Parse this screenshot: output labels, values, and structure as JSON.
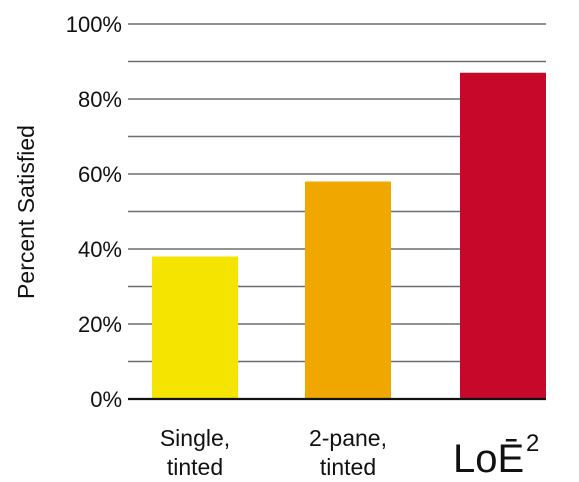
{
  "chart_data": {
    "type": "bar",
    "categories": [
      "Single, tinted",
      "2-pane, tinted",
      "LoE2"
    ],
    "category_display": [
      {
        "lines": [
          "Single,",
          "tinted"
        ]
      },
      {
        "lines": [
          "2-pane,",
          "tinted"
        ]
      },
      {
        "main": "LoĒ",
        "sup": "2"
      }
    ],
    "values": [
      38,
      58,
      87
    ],
    "colors": [
      "#f5e400",
      "#f0a800",
      "#c8082a"
    ],
    "ylabel": "Percent Satisfied",
    "xlabel": "",
    "title": "",
    "ylim": [
      0,
      100
    ],
    "yticks": [
      {
        "value": 0,
        "label": "0%"
      },
      {
        "value": 20,
        "label": "20%"
      },
      {
        "value": 40,
        "label": "40%"
      },
      {
        "value": 60,
        "label": "60%"
      },
      {
        "value": 80,
        "label": "80%"
      },
      {
        "value": 100,
        "label": "100%"
      }
    ],
    "minor_gridlines": [
      10,
      30,
      50,
      70,
      90
    ],
    "grid": true,
    "legend": "none"
  }
}
